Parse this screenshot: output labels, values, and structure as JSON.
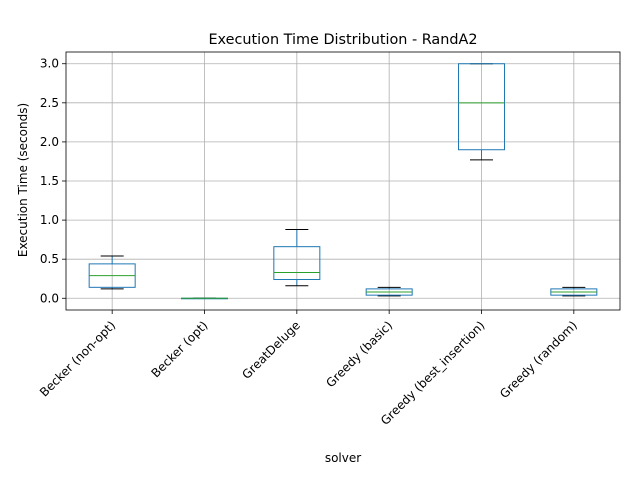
{
  "chart_data": {
    "type": "box",
    "title": "Execution Time Distribution - RandA2",
    "xlabel": "solver",
    "ylabel": "Execution Time (seconds)",
    "ylim": [
      -0.15,
      3.15
    ],
    "yticks": [
      0.0,
      0.5,
      1.0,
      1.5,
      2.0,
      2.5,
      3.0
    ],
    "ytick_labels": [
      "0.0",
      "0.5",
      "1.0",
      "1.5",
      "2.0",
      "2.5",
      "3.0"
    ],
    "grid": true,
    "categories": [
      "Becker (non-opt)",
      "Becker (opt)",
      "GreatDeluge",
      "Greedy (basic)",
      "Greedy (best_insertion)",
      "Greedy (random)"
    ],
    "boxes": [
      {
        "whisker_low": 0.12,
        "q1": 0.14,
        "median": 0.29,
        "q3": 0.44,
        "whisker_high": 0.54
      },
      {
        "whisker_low": 0.0,
        "q1": 0.0,
        "median": 0.0,
        "q3": 0.0,
        "whisker_high": 0.0
      },
      {
        "whisker_low": 0.16,
        "q1": 0.24,
        "median": 0.33,
        "q3": 0.66,
        "whisker_high": 0.88
      },
      {
        "whisker_low": 0.03,
        "q1": 0.04,
        "median": 0.08,
        "q3": 0.12,
        "whisker_high": 0.14
      },
      {
        "whisker_low": 1.77,
        "q1": 1.9,
        "median": 2.5,
        "q3": 3.0,
        "whisker_high": 3.0
      },
      {
        "whisker_low": 0.03,
        "q1": 0.04,
        "median": 0.08,
        "q3": 0.12,
        "whisker_high": 0.14
      }
    ],
    "colors": {
      "box": "#1f77b4",
      "median": "#2ca02c",
      "whisker": "#000000",
      "grid": "#b0b0b0"
    }
  }
}
